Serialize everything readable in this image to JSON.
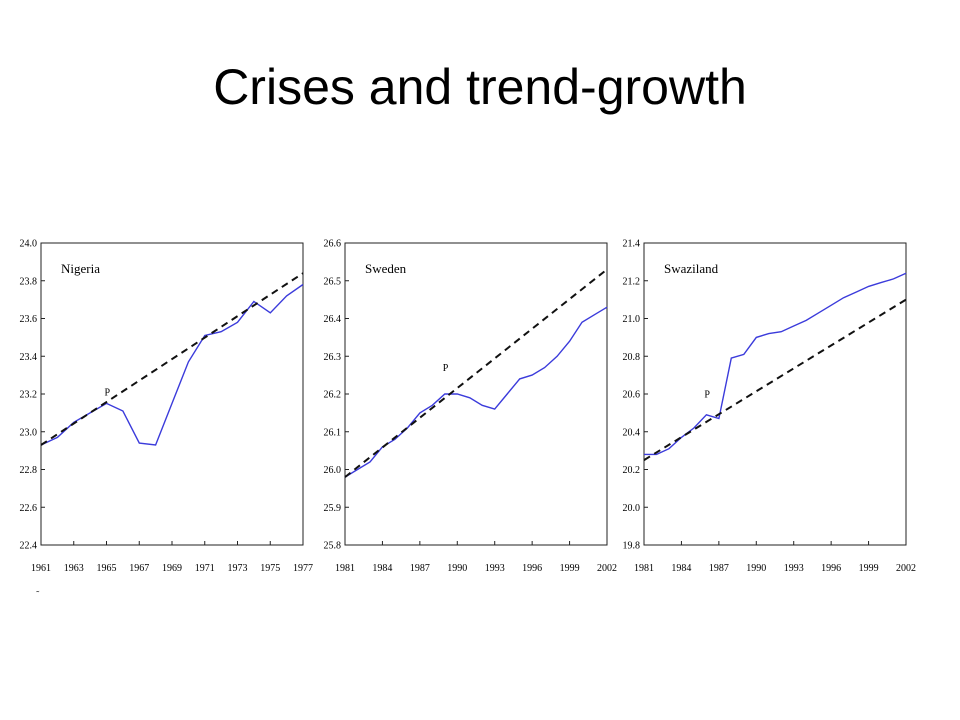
{
  "slide": {
    "title": "Crises and trend-growth"
  },
  "colors": {
    "actual": "#3b3bdb",
    "trend": "#111111",
    "axis": "#222222"
  },
  "chart_data": [
    {
      "type": "line",
      "title": "Nigeria",
      "xlabel": "",
      "ylabel": "",
      "xlim": [
        1961,
        1977
      ],
      "ylim": [
        22.4,
        24.0
      ],
      "yticks": [
        "24.0",
        "23.8",
        "23.6",
        "23.4",
        "23.2",
        "23.0",
        "22.8",
        "22.6",
        "22.4"
      ],
      "xticks": [
        "1961",
        "1963",
        "1965",
        "1967",
        "1969",
        "1971",
        "1973",
        "1975",
        "1977"
      ],
      "marker": {
        "label": "P",
        "x": 1965,
        "y": 23.15
      },
      "series": [
        {
          "role": "actual",
          "x": [
            1961,
            1962,
            1963,
            1964,
            1965,
            1966,
            1967,
            1968,
            1969,
            1970,
            1971,
            1972,
            1973,
            1974,
            1975,
            1976,
            1977
          ],
          "values": [
            22.93,
            22.97,
            23.05,
            23.1,
            23.15,
            23.11,
            22.94,
            22.93,
            23.15,
            23.37,
            23.51,
            23.53,
            23.58,
            23.69,
            23.63,
            23.72,
            23.78
          ]
        },
        {
          "role": "trend",
          "x": [
            1961,
            1977
          ],
          "values": [
            22.93,
            23.84
          ]
        }
      ]
    },
    {
      "type": "line",
      "title": "Sweden",
      "xlabel": "",
      "ylabel": "",
      "xlim": [
        1981,
        2002
      ],
      "ylim": [
        25.8,
        26.6
      ],
      "yticks": [
        "26.6",
        "26.5",
        "26.4",
        "26.3",
        "26.2",
        "26.1",
        "26.0",
        "25.9",
        "25.8"
      ],
      "xticks": [
        "1981",
        "1984",
        "1987",
        "1990",
        "1993",
        "1996",
        "1999",
        "2002"
      ],
      "marker": {
        "label": "P",
        "x": 1989,
        "y": 26.24
      },
      "series": [
        {
          "role": "actual",
          "x": [
            1981,
            1982,
            1983,
            1984,
            1985,
            1986,
            1987,
            1988,
            1989,
            1990,
            1991,
            1992,
            1993,
            1994,
            1995,
            1996,
            1997,
            1998,
            1999,
            2000,
            2001,
            2002
          ],
          "values": [
            25.98,
            26.0,
            26.02,
            26.06,
            26.08,
            26.11,
            26.15,
            26.17,
            26.2,
            26.2,
            26.19,
            26.17,
            26.16,
            26.2,
            26.24,
            26.25,
            26.27,
            26.3,
            26.34,
            26.39,
            26.41,
            26.43
          ]
        },
        {
          "role": "trend",
          "x": [
            1981,
            2002
          ],
          "values": [
            25.98,
            26.53
          ]
        }
      ]
    },
    {
      "type": "line",
      "title": "Swaziland",
      "xlabel": "",
      "ylabel": "",
      "xlim": [
        1981,
        2002
      ],
      "ylim": [
        19.8,
        21.4
      ],
      "yticks": [
        "21.4",
        "21.2",
        "21.0",
        "20.8",
        "20.6",
        "20.4",
        "20.2",
        "20.0",
        "19.8"
      ],
      "xticks": [
        "1981",
        "1984",
        "1987",
        "1990",
        "1993",
        "1996",
        "1999",
        "2002"
      ],
      "marker": {
        "label": "P",
        "x": 1986,
        "y": 20.54
      },
      "series": [
        {
          "role": "actual",
          "x": [
            1981,
            1982,
            1983,
            1984,
            1985,
            1986,
            1987,
            1988,
            1989,
            1990,
            1991,
            1992,
            1993,
            1994,
            1995,
            1996,
            1997,
            1998,
            1999,
            2000,
            2001,
            2002
          ],
          "values": [
            20.28,
            20.28,
            20.31,
            20.37,
            20.42,
            20.49,
            20.47,
            20.79,
            20.81,
            20.9,
            20.92,
            20.93,
            20.96,
            20.99,
            21.03,
            21.07,
            21.11,
            21.14,
            21.17,
            21.19,
            21.21,
            21.24
          ]
        },
        {
          "role": "trend",
          "x": [
            1981,
            2002
          ],
          "values": [
            20.25,
            21.1
          ]
        }
      ]
    }
  ]
}
